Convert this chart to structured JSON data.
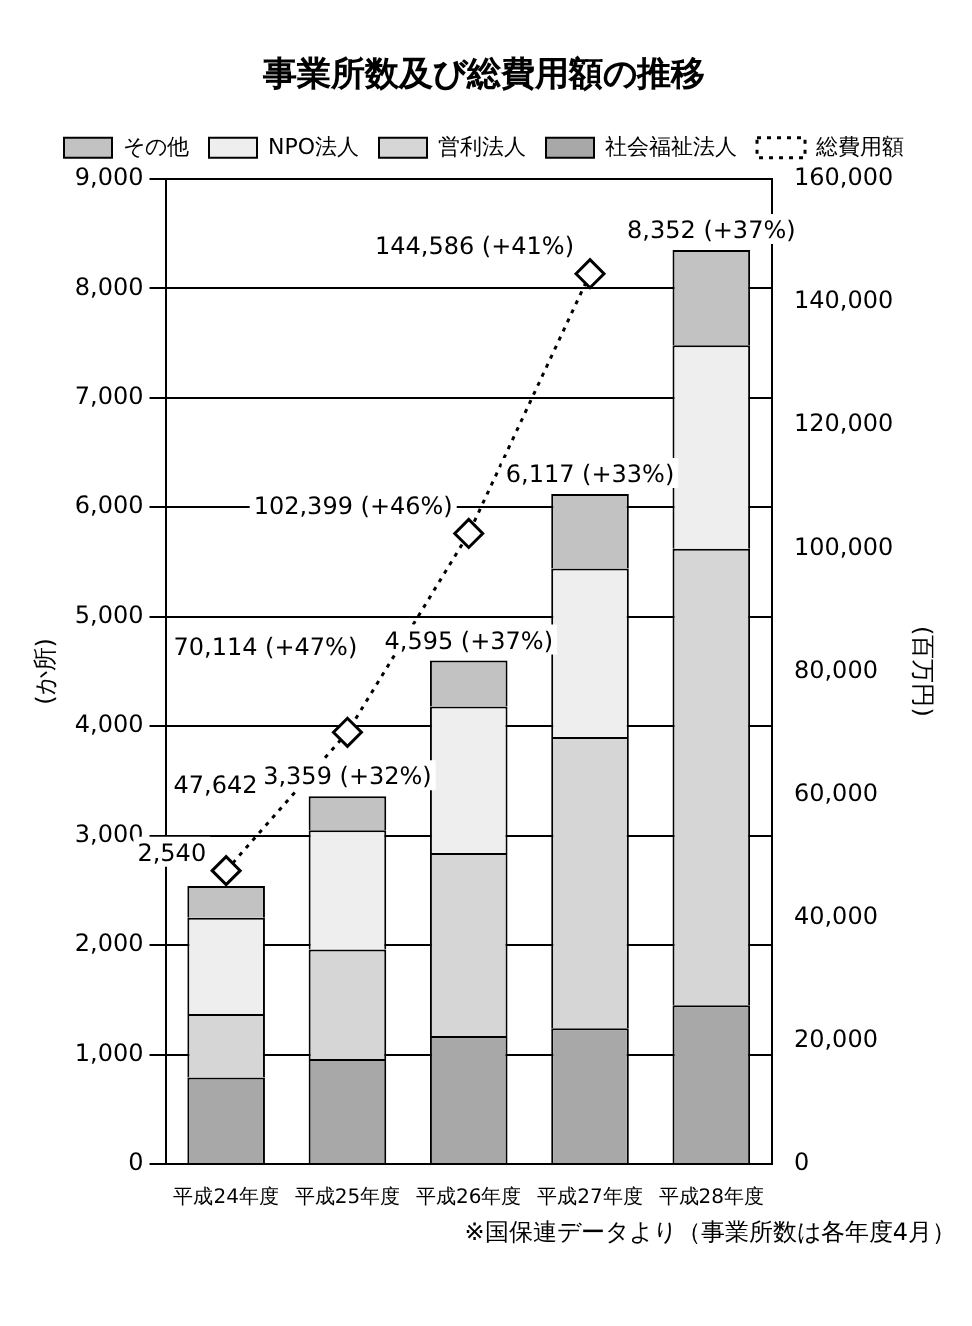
{
  "chart_data": {
    "type": "bar",
    "title": "事業所数及び総費用額の推移",
    "ylabel": "(か所)",
    "y2label": "(百万円)",
    "categories": [
      "平成24年度",
      "平成25年度",
      "平成26年度",
      "平成27年度",
      "平成28年度"
    ],
    "stacked": true,
    "series": [
      {
        "name": "社会福祉法人",
        "color": "#a8a8a8",
        "values": [
          790,
          960,
          1170,
          1240,
          1450
        ]
      },
      {
        "name": "営利法人",
        "color": "#d6d6d6",
        "values": [
          580,
          1000,
          1670,
          2660,
          4170
        ]
      },
      {
        "name": "NPO法人",
        "color": "#eeeeee",
        "values": [
          880,
          1090,
          1340,
          1540,
          1860
        ]
      },
      {
        "name": "その他",
        "color": "#c2c2c2",
        "values": [
          290,
          310,
          420,
          680,
          870
        ]
      },
      {
        "name": "総費用額",
        "type": "line",
        "axis": "y2",
        "color": "#000000",
        "marker": "diamond",
        "line_style": "dotted",
        "values": [
          47642,
          70114,
          102399,
          144586,
          null
        ],
        "value_labels": [
          "47,642",
          "70,114 (+47%)",
          "102,399 (+46%)",
          "144,586 (+41%)",
          null
        ]
      }
    ],
    "totals": [
      "2,540",
      "3,359 (+32%)",
      "4,595 (+37%)",
      "6,117 (+33%)",
      "8,352 (+37%)"
    ],
    "ylim": [
      0,
      9000
    ],
    "yticks": [
      0,
      {
        "value": 1000,
        "label": "1,000"
      },
      {
        "value": 2000,
        "label": "2,000"
      },
      {
        "value": 3000,
        "label": "3,000"
      },
      {
        "value": 4000,
        "label": "4,000"
      },
      {
        "value": 5000,
        "label": "5,000"
      },
      {
        "value": 6000,
        "label": "6,000"
      },
      {
        "value": 7000,
        "label": "7,000"
      },
      {
        "value": 8000,
        "label": "8,000"
      },
      {
        "value": 9000,
        "label": "9,000"
      }
    ],
    "y2lim": [
      0,
      160000
    ],
    "y2ticks": [
      0,
      {
        "value": 20000,
        "label": "20,000"
      },
      {
        "value": 40000,
        "label": "40,000"
      },
      {
        "value": 60000,
        "label": "60,000"
      },
      {
        "value": 80000,
        "label": "80,000"
      },
      {
        "value": 100000,
        "label": "100,000"
      },
      {
        "value": 120000,
        "label": "120,000"
      },
      {
        "value": 140000,
        "label": "140,000"
      },
      {
        "value": 160000,
        "label": "160,000"
      }
    ],
    "grid": "y",
    "legend": "top",
    "annotations": [
      "※国保連データより（事業所数は各年度4月）"
    ]
  }
}
